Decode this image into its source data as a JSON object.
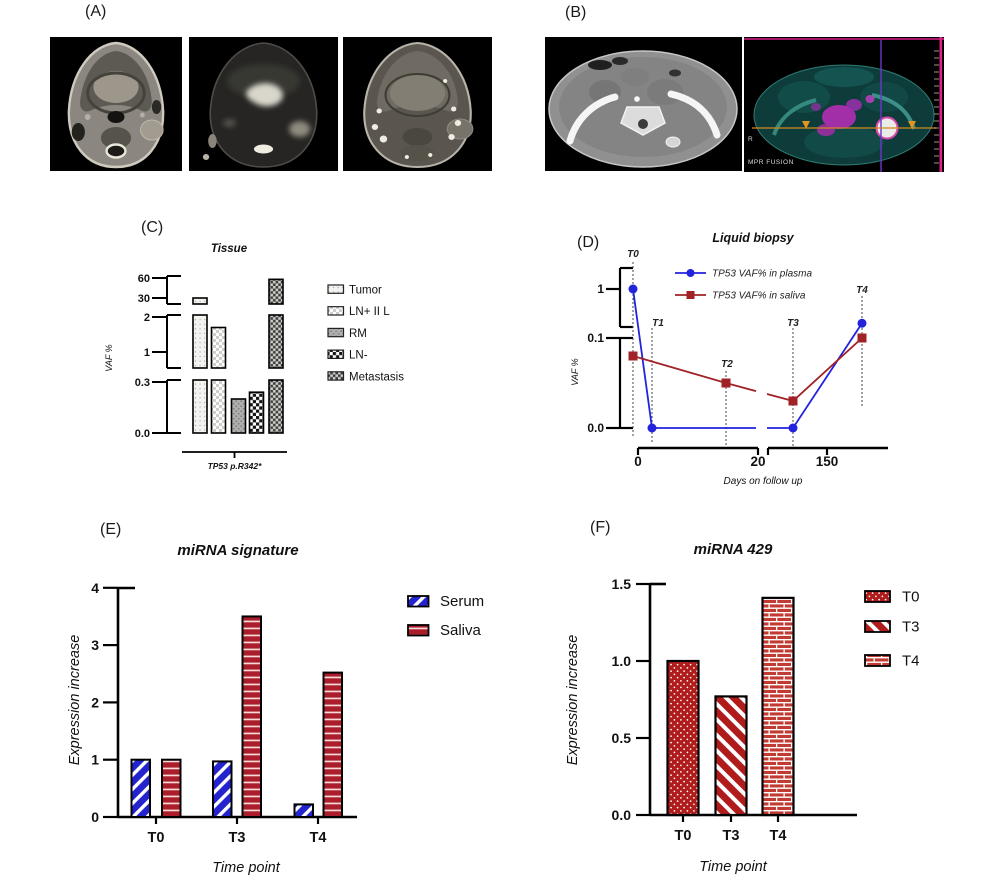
{
  "panels": {
    "a": {
      "label": "(A)"
    },
    "b": {
      "label": "(B)",
      "orientation_label": "R",
      "mode_label": "MPR FUSION"
    },
    "c": {
      "label": "(C)"
    },
    "d": {
      "label": "(D)"
    },
    "e": {
      "label": "(E)"
    },
    "f": {
      "label": "(F)"
    }
  },
  "chart_data": [
    {
      "id": "tissue",
      "type": "bar",
      "title": "Tissue",
      "ylabel": "VAF %",
      "xlabel": "TP53 p.R342*",
      "categories": [
        "Tumor",
        "LN+ II L",
        "RM",
        "LN-",
        "Metastasis"
      ],
      "values": [
        30,
        1.7,
        0.2,
        0.24,
        58
      ],
      "patterns": [
        "light-dots",
        "light-checker",
        "grey-speckle",
        "checkerboard",
        "dark-checker"
      ],
      "legend": [
        "Tumor",
        "LN+ II L",
        "RM",
        "LN-",
        "Metastasis"
      ],
      "y_axis_segments": [
        [
          0,
          0.3
        ],
        [
          0.55,
          2
        ],
        [
          21,
          60
        ]
      ],
      "yticks": [
        {
          "label": "0.0",
          "value": 0
        },
        {
          "label": "0.3",
          "value": 0.3
        },
        {
          "label": "1",
          "value": 1
        },
        {
          "label": "2",
          "value": 2
        },
        {
          "label": "30",
          "value": 30
        },
        {
          "label": "60",
          "value": 60
        }
      ]
    },
    {
      "id": "liquid_biopsy",
      "type": "line",
      "title": "Liquid biopsy",
      "ylabel": "VAF %",
      "xlabel": "Days on follow up",
      "timepoint_labels": [
        "T0",
        "T1",
        "T2",
        "T3",
        "T4"
      ],
      "xticks": [
        "0",
        "20",
        "150"
      ],
      "yticks": [
        "1",
        "0.1",
        "0.0"
      ],
      "x_axis_break_between": [
        "20",
        "150"
      ],
      "series": [
        {
          "name": "TP53 VAF% in plasma",
          "color": "#2323dc",
          "marker": "circle",
          "points": [
            {
              "t": "T0",
              "value": 1.0
            },
            {
              "t": "T1",
              "value": 0.0
            },
            {
              "t": "T3",
              "value": 0.0
            },
            {
              "t": "T4",
              "value": 0.2
            }
          ]
        },
        {
          "name": "TP53 VAF% in saliva",
          "color": "#a02226",
          "marker": "square",
          "points": [
            {
              "t": "T0",
              "value": 0.08
            },
            {
              "t": "T2",
              "value": 0.05
            },
            {
              "t": "T3",
              "value": 0.03
            },
            {
              "t": "T4",
              "value": 0.1
            }
          ]
        }
      ]
    },
    {
      "id": "mirna_signature",
      "type": "bar",
      "title": "miRNA signature",
      "ylabel": "Expression increase",
      "xlabel": "Time point",
      "categories": [
        "T0",
        "T3",
        "T4"
      ],
      "series": [
        {
          "name": "Serum",
          "color": "#2424cf",
          "pattern": "blue-diagonal-stripes",
          "values": [
            1.0,
            0.97,
            0.22
          ]
        },
        {
          "name": "Saliva",
          "color": "#ab1d2a",
          "pattern": "red-horizontal-stripes",
          "values": [
            1.0,
            3.5,
            2.52
          ]
        }
      ],
      "ylim": [
        0,
        4
      ],
      "yticks": [
        "0",
        "1",
        "2",
        "3",
        "4"
      ]
    },
    {
      "id": "mirna_429",
      "type": "bar",
      "title": "miRNA 429",
      "ylabel": "Expression increase",
      "xlabel": "Time point",
      "categories": [
        "T0",
        "T3",
        "T4"
      ],
      "values": [
        1.0,
        0.77,
        1.41
      ],
      "bar_patterns": [
        "red-dots",
        "red-diagonal-stripes",
        "red-brick"
      ],
      "bar_color": "#b01c1c",
      "legend": [
        "T0",
        "T3",
        "T4"
      ],
      "ylim": [
        0,
        1.5
      ],
      "yticks": [
        "0.0",
        "0.5",
        "1.0",
        "1.5"
      ]
    }
  ]
}
